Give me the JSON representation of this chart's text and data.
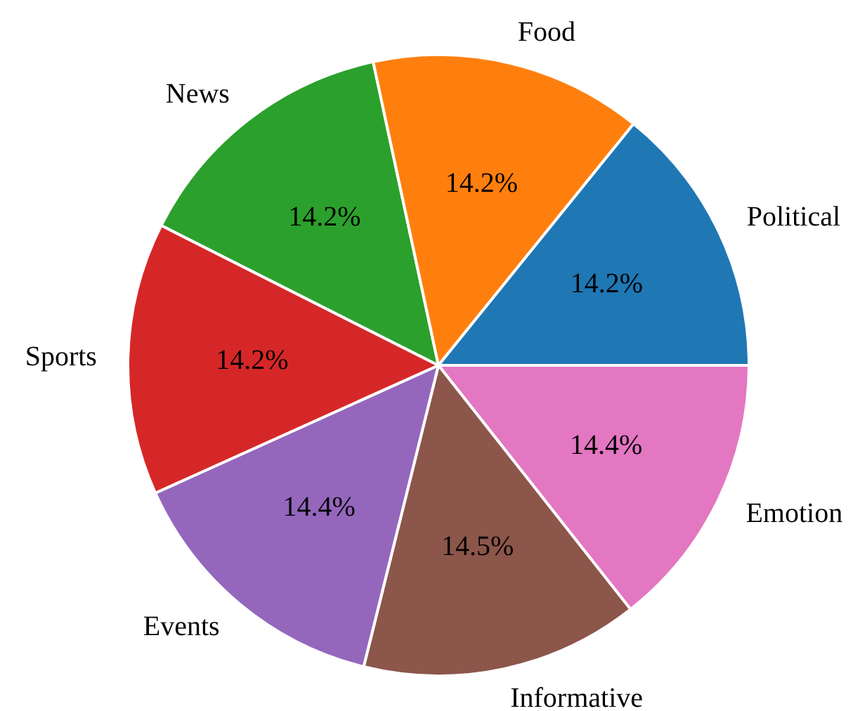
{
  "chart_data": {
    "type": "pie",
    "categories": [
      "Political",
      "Food",
      "News",
      "Sports",
      "Events",
      "Informative",
      "Emotion"
    ],
    "values": [
      14.2,
      14.2,
      14.2,
      14.2,
      14.4,
      14.5,
      14.4
    ],
    "value_labels": [
      "14.2%",
      "14.2%",
      "14.2%",
      "14.2%",
      "14.4%",
      "14.5%",
      "14.4%"
    ],
    "colors": [
      "#1f77b4",
      "#ff7f0e",
      "#2ca02c",
      "#d62728",
      "#9467bd",
      "#8c564b",
      "#e377c2"
    ],
    "legend": false
  }
}
